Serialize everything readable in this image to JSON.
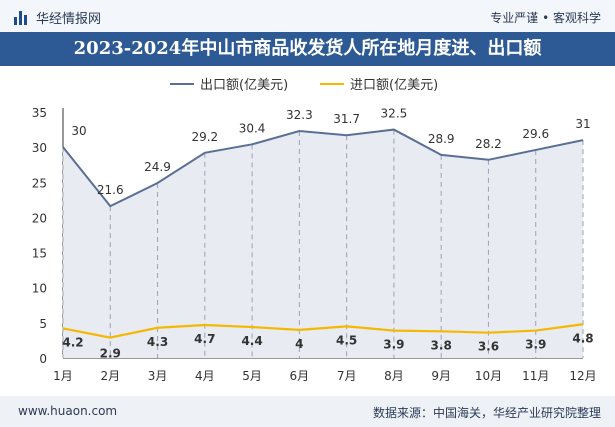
{
  "header": {
    "brand": "华经情报网",
    "tagline": "专业严谨 • 客观科学"
  },
  "title": "2023-2024年中山市商品收发货人所在地月度进、出口额",
  "footer": {
    "website": "www.huaon.com",
    "source": "数据来源：中国海关，华经产业研究院整理"
  },
  "chart_data": {
    "type": "line",
    "categories": [
      "1月",
      "2月",
      "3月",
      "4月",
      "5月",
      "6月",
      "7月",
      "8月",
      "9月",
      "10月",
      "11月",
      "12月"
    ],
    "ylim": [
      0,
      35
    ],
    "yticks": [
      0,
      5,
      10,
      15,
      20,
      25,
      30,
      35
    ],
    "legend_position": "top",
    "series": [
      {
        "name": "出口额(亿美元)",
        "values": [
          30,
          21.6,
          24.9,
          29.2,
          30.4,
          32.3,
          31.7,
          32.5,
          28.9,
          28.2,
          29.6,
          31
        ],
        "color": "#5a6f95"
      },
      {
        "name": "进口额(亿美元)",
        "values": [
          4.2,
          2.9,
          4.3,
          4.7,
          4.4,
          4,
          4.5,
          3.9,
          3.8,
          3.6,
          3.9,
          4.8
        ],
        "color": "#f5b800"
      }
    ]
  }
}
